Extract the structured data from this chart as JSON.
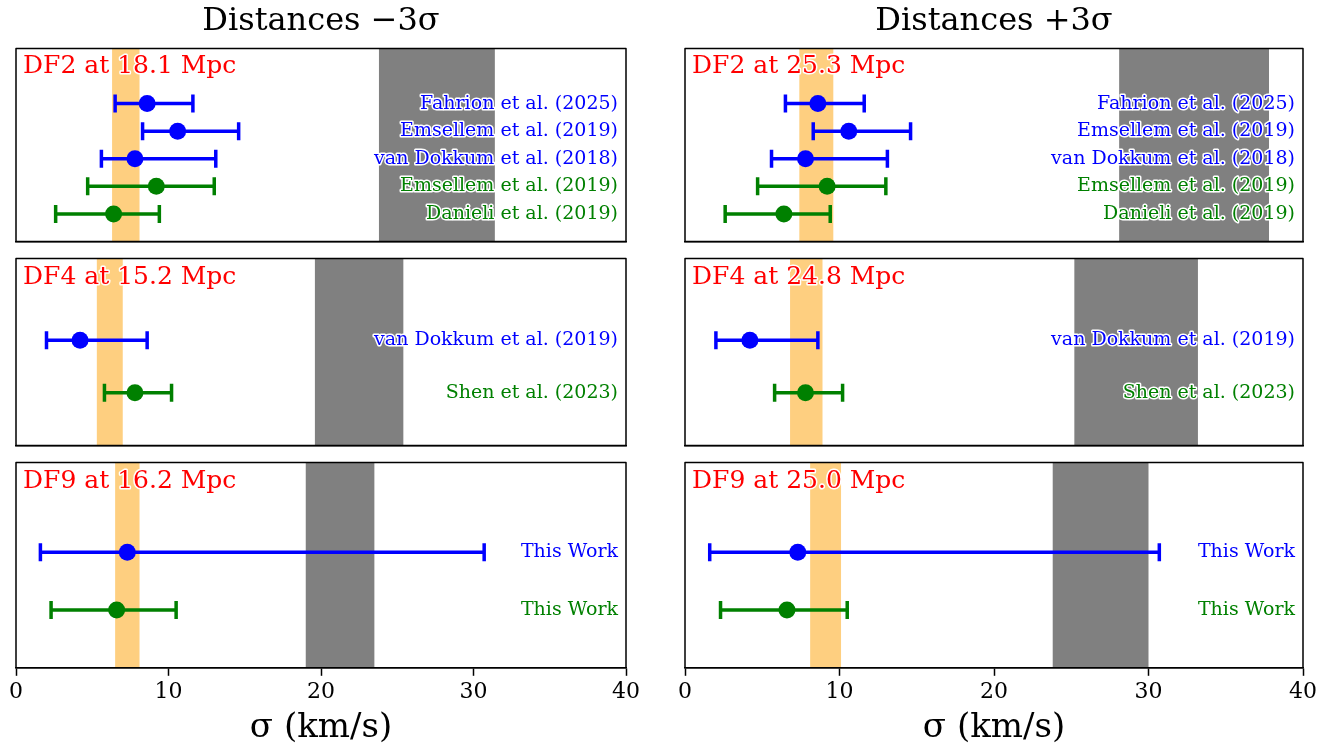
{
  "chart_data": [
    {
      "type": "scatter",
      "orientation": "horizontal",
      "title": "Distances −3σ",
      "annotations": [
        "DF2 at 18.1 Mpc"
      ],
      "xlim": [
        0,
        40
      ],
      "xticks": [
        0,
        10,
        20,
        30,
        40
      ],
      "tick_labels": false,
      "marker": "circle",
      "categories": [
        "Fahrion et al. (2025)",
        "Emsellem et al. (2019)",
        "van Dokkum et al. (2018)",
        "Emsellem et al. (2019)",
        "Danieli et al. (2019)"
      ],
      "bands": [
        {
          "axis": "x",
          "from": 6.3,
          "to": 8.1,
          "color": "#fecf80"
        },
        {
          "axis": "x",
          "from": 23.8,
          "to": 31.4,
          "color": "#808080"
        }
      ],
      "series": [
        {
          "color": "#0000ff",
          "values": [
            8.6,
            10.6,
            7.8,
            null,
            null
          ],
          "errors": [
            [
              6.5,
              11.6
            ],
            [
              8.3,
              14.6
            ],
            [
              5.6,
              13.1
            ],
            null,
            null
          ]
        },
        {
          "color": "#008000",
          "values": [
            null,
            null,
            null,
            9.2,
            6.4
          ],
          "errors": [
            null,
            null,
            null,
            [
              4.7,
              13.0
            ],
            [
              2.6,
              9.4
            ]
          ]
        }
      ]
    },
    {
      "type": "scatter",
      "orientation": "horizontal",
      "title": "Distances +3σ",
      "annotations": [
        "DF2 at 25.3 Mpc"
      ],
      "xlim": [
        0,
        40
      ],
      "xticks": [
        0,
        10,
        20,
        30,
        40
      ],
      "tick_labels": false,
      "marker": "circle",
      "categories": [
        "Fahrion et al. (2025)",
        "Emsellem et al. (2019)",
        "van Dokkum et al. (2018)",
        "Emsellem et al. (2019)",
        "Danieli et al. (2019)"
      ],
      "bands": [
        {
          "axis": "x",
          "from": 7.4,
          "to": 9.6,
          "color": "#fecf80"
        },
        {
          "axis": "x",
          "from": 28.1,
          "to": 37.8,
          "color": "#808080"
        }
      ],
      "series": [
        {
          "color": "#0000ff",
          "values": [
            8.6,
            10.6,
            7.8,
            null,
            null
          ],
          "errors": [
            [
              6.5,
              11.6
            ],
            [
              8.3,
              14.6
            ],
            [
              5.6,
              13.1
            ],
            null,
            null
          ]
        },
        {
          "color": "#008000",
          "values": [
            null,
            null,
            null,
            9.2,
            6.4
          ],
          "errors": [
            null,
            null,
            null,
            [
              4.7,
              13.0
            ],
            [
              2.6,
              9.4
            ]
          ]
        }
      ]
    },
    {
      "type": "scatter",
      "orientation": "horizontal",
      "annotations": [
        "DF4 at 15.2 Mpc"
      ],
      "xlim": [
        0,
        40
      ],
      "xticks": [
        0,
        10,
        20,
        30,
        40
      ],
      "tick_labels": false,
      "marker": "circle",
      "categories": [
        "van Dokkum et al. (2019)",
        "Shen et al. (2023)"
      ],
      "bands": [
        {
          "axis": "x",
          "from": 5.3,
          "to": 7.0,
          "color": "#fecf80"
        },
        {
          "axis": "x",
          "from": 19.6,
          "to": 25.4,
          "color": "#808080"
        }
      ],
      "series": [
        {
          "color": "#0000ff",
          "values": [
            4.2,
            null
          ],
          "errors": [
            [
              2.0,
              8.6
            ],
            null
          ]
        },
        {
          "color": "#008000",
          "values": [
            null,
            7.8
          ],
          "errors": [
            null,
            [
              5.8,
              10.2
            ]
          ]
        }
      ]
    },
    {
      "type": "scatter",
      "orientation": "horizontal",
      "annotations": [
        "DF4 at 24.8 Mpc"
      ],
      "xlim": [
        0,
        40
      ],
      "xticks": [
        0,
        10,
        20,
        30,
        40
      ],
      "tick_labels": false,
      "marker": "circle",
      "categories": [
        "van Dokkum et al. (2019)",
        "Shen et al. (2023)"
      ],
      "bands": [
        {
          "axis": "x",
          "from": 6.8,
          "to": 8.9,
          "color": "#fecf80"
        },
        {
          "axis": "x",
          "from": 25.2,
          "to": 33.2,
          "color": "#808080"
        }
      ],
      "series": [
        {
          "color": "#0000ff",
          "values": [
            4.2,
            null
          ],
          "errors": [
            [
              2.0,
              8.6
            ],
            null
          ]
        },
        {
          "color": "#008000",
          "values": [
            null,
            7.8
          ],
          "errors": [
            null,
            [
              5.8,
              10.2
            ]
          ]
        }
      ]
    },
    {
      "type": "scatter",
      "orientation": "horizontal",
      "xlabel": "σ (km/s)",
      "annotations": [
        "DF9 at 16.2 Mpc"
      ],
      "xlim": [
        0,
        40
      ],
      "xticks": [
        0,
        10,
        20,
        30,
        40
      ],
      "tick_labels": "x",
      "marker": "circle",
      "categories": [
        "This Work",
        "This Work"
      ],
      "bands": [
        {
          "axis": "x",
          "from": 6.5,
          "to": 8.1,
          "color": "#fecf80"
        },
        {
          "axis": "x",
          "from": 19.0,
          "to": 23.5,
          "color": "#808080"
        }
      ],
      "series": [
        {
          "color": "#0000ff",
          "values": [
            7.3,
            null
          ],
          "errors": [
            [
              1.6,
              30.7
            ],
            null
          ]
        },
        {
          "color": "#008000",
          "values": [
            null,
            6.6
          ],
          "errors": [
            null,
            [
              2.3,
              10.5
            ]
          ]
        }
      ]
    },
    {
      "type": "scatter",
      "orientation": "horizontal",
      "xlabel": "σ (km/s)",
      "annotations": [
        "DF9 at 25.0 Mpc"
      ],
      "xlim": [
        0,
        40
      ],
      "xticks": [
        0,
        10,
        20,
        30,
        40
      ],
      "tick_labels": "x",
      "marker": "circle",
      "categories": [
        "This Work",
        "This Work"
      ],
      "bands": [
        {
          "axis": "x",
          "from": 8.1,
          "to": 10.1,
          "color": "#fecf80"
        },
        {
          "axis": "x",
          "from": 23.8,
          "to": 30.0,
          "color": "#808080"
        }
      ],
      "series": [
        {
          "color": "#0000ff",
          "values": [
            7.3,
            null
          ],
          "errors": [
            [
              1.6,
              30.7
            ],
            null
          ]
        },
        {
          "color": "#008000",
          "values": [
            null,
            6.6
          ],
          "errors": [
            null,
            [
              2.3,
              10.5
            ]
          ]
        }
      ]
    }
  ]
}
